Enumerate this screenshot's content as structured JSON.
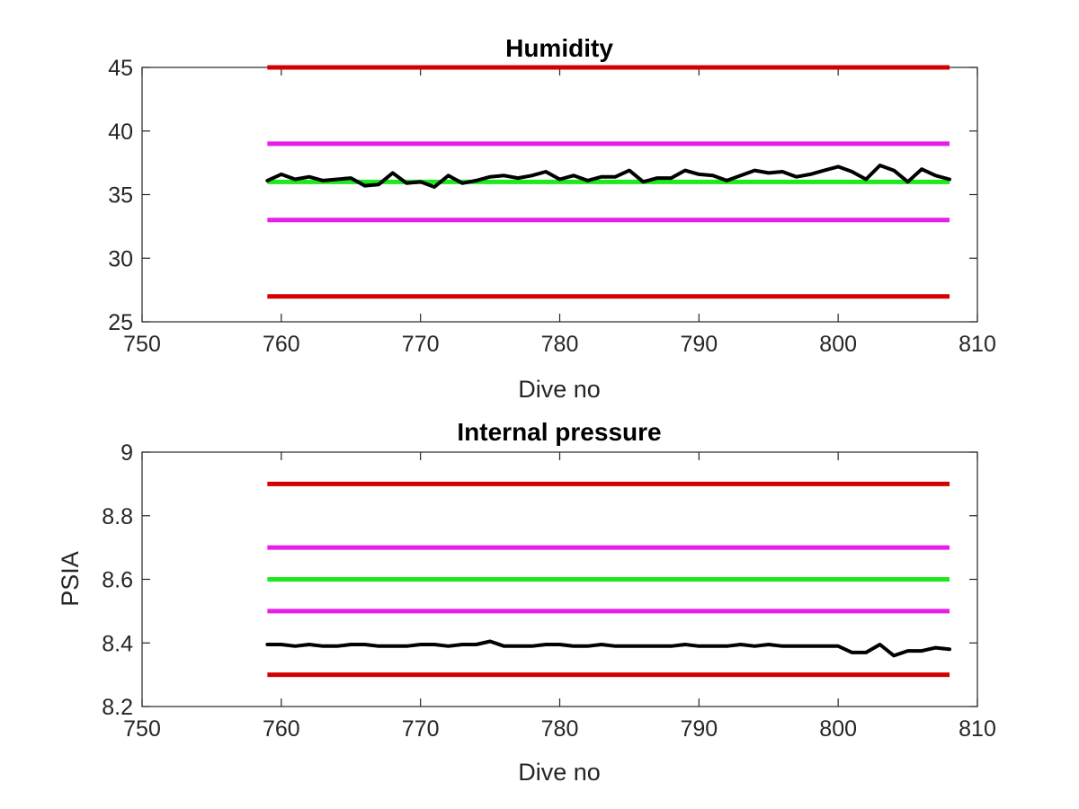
{
  "chart_data": [
    {
      "type": "line",
      "title": "Humidity",
      "xlabel": "Dive no",
      "ylabel": "",
      "xlim": [
        750,
        810
      ],
      "ylim": [
        25,
        45
      ],
      "xticks": [
        750,
        760,
        770,
        780,
        790,
        800,
        810
      ],
      "yticks": [
        25,
        30,
        35,
        40,
        45
      ],
      "grid": false,
      "legend": "none",
      "reference_lines": [
        {
          "color": "#d40000",
          "x": [
            759,
            808
          ],
          "y": 45
        },
        {
          "color": "#e81ee8",
          "x": [
            759,
            808
          ],
          "y": 39
        },
        {
          "color": "#1ee81e",
          "x": [
            759,
            808
          ],
          "y": 36
        },
        {
          "color": "#e81ee8",
          "x": [
            759,
            808
          ],
          "y": 33
        },
        {
          "color": "#d40000",
          "x": [
            759,
            808
          ],
          "y": 27
        }
      ],
      "series": [
        {
          "color": "#000000",
          "x": [
            759,
            760,
            761,
            762,
            763,
            764,
            765,
            766,
            767,
            768,
            769,
            770,
            771,
            772,
            773,
            774,
            775,
            776,
            777,
            778,
            779,
            780,
            781,
            782,
            783,
            784,
            785,
            786,
            787,
            788,
            789,
            790,
            791,
            792,
            793,
            794,
            795,
            796,
            797,
            798,
            799,
            800,
            801,
            802,
            803,
            804,
            805,
            806,
            807,
            808
          ],
          "y": [
            36.1,
            36.6,
            36.2,
            36.4,
            36.1,
            36.2,
            36.3,
            35.7,
            35.8,
            36.7,
            35.9,
            36.0,
            35.6,
            36.5,
            35.9,
            36.1,
            36.4,
            36.5,
            36.3,
            36.5,
            36.8,
            36.2,
            36.5,
            36.1,
            36.4,
            36.4,
            36.9,
            36.0,
            36.3,
            36.3,
            36.9,
            36.6,
            36.5,
            36.1,
            36.5,
            36.9,
            36.7,
            36.8,
            36.4,
            36.6,
            36.9,
            37.2,
            36.8,
            36.2,
            37.3,
            36.9,
            36.0,
            37.0,
            36.5,
            36.2
          ]
        }
      ]
    },
    {
      "type": "line",
      "title": "Internal pressure",
      "xlabel": "Dive no",
      "ylabel": "PSIA",
      "xlim": [
        750,
        810
      ],
      "ylim": [
        8.2,
        9
      ],
      "xticks": [
        750,
        760,
        770,
        780,
        790,
        800,
        810
      ],
      "yticks": [
        8.2,
        8.4,
        8.6,
        8.8,
        9
      ],
      "grid": false,
      "legend": "none",
      "reference_lines": [
        {
          "color": "#d40000",
          "x": [
            759,
            808
          ],
          "y": 8.9
        },
        {
          "color": "#e81ee8",
          "x": [
            759,
            808
          ],
          "y": 8.7
        },
        {
          "color": "#1ee81e",
          "x": [
            759,
            808
          ],
          "y": 8.6
        },
        {
          "color": "#e81ee8",
          "x": [
            759,
            808
          ],
          "y": 8.5
        },
        {
          "color": "#d40000",
          "x": [
            759,
            808
          ],
          "y": 8.3
        }
      ],
      "series": [
        {
          "color": "#000000",
          "x": [
            759,
            760,
            761,
            762,
            763,
            764,
            765,
            766,
            767,
            768,
            769,
            770,
            771,
            772,
            773,
            774,
            775,
            776,
            777,
            778,
            779,
            780,
            781,
            782,
            783,
            784,
            785,
            786,
            787,
            788,
            789,
            790,
            791,
            792,
            793,
            794,
            795,
            796,
            797,
            798,
            799,
            800,
            801,
            802,
            803,
            804,
            805,
            806,
            807,
            808
          ],
          "y": [
            8.395,
            8.395,
            8.39,
            8.395,
            8.39,
            8.39,
            8.395,
            8.395,
            8.39,
            8.39,
            8.39,
            8.395,
            8.395,
            8.39,
            8.395,
            8.395,
            8.405,
            8.39,
            8.39,
            8.39,
            8.395,
            8.395,
            8.39,
            8.39,
            8.395,
            8.39,
            8.39,
            8.39,
            8.39,
            8.39,
            8.395,
            8.39,
            8.39,
            8.39,
            8.395,
            8.39,
            8.395,
            8.39,
            8.39,
            8.39,
            8.39,
            8.39,
            8.37,
            8.37,
            8.395,
            8.36,
            8.375,
            8.375,
            8.385,
            8.38
          ]
        }
      ]
    }
  ]
}
